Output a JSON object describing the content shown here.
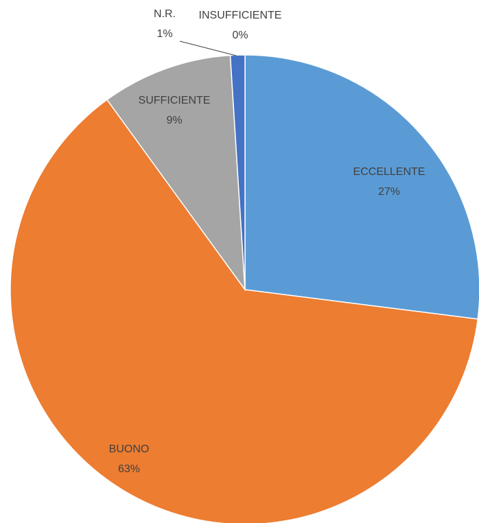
{
  "chart_data": {
    "type": "pie",
    "categories": [
      "ECCELLENTE",
      "BUONO",
      "SUFFICIENTE",
      "INSUFFICIENTE",
      "N.R."
    ],
    "values": [
      27,
      63,
      9,
      0,
      1
    ],
    "value_labels": [
      "27%",
      "63%",
      "9%",
      "0%",
      "1%"
    ],
    "colors": [
      "#5b9bd5",
      "#ed7d31",
      "#a5a5a5",
      "#ffc000",
      "#4472c4"
    ]
  }
}
